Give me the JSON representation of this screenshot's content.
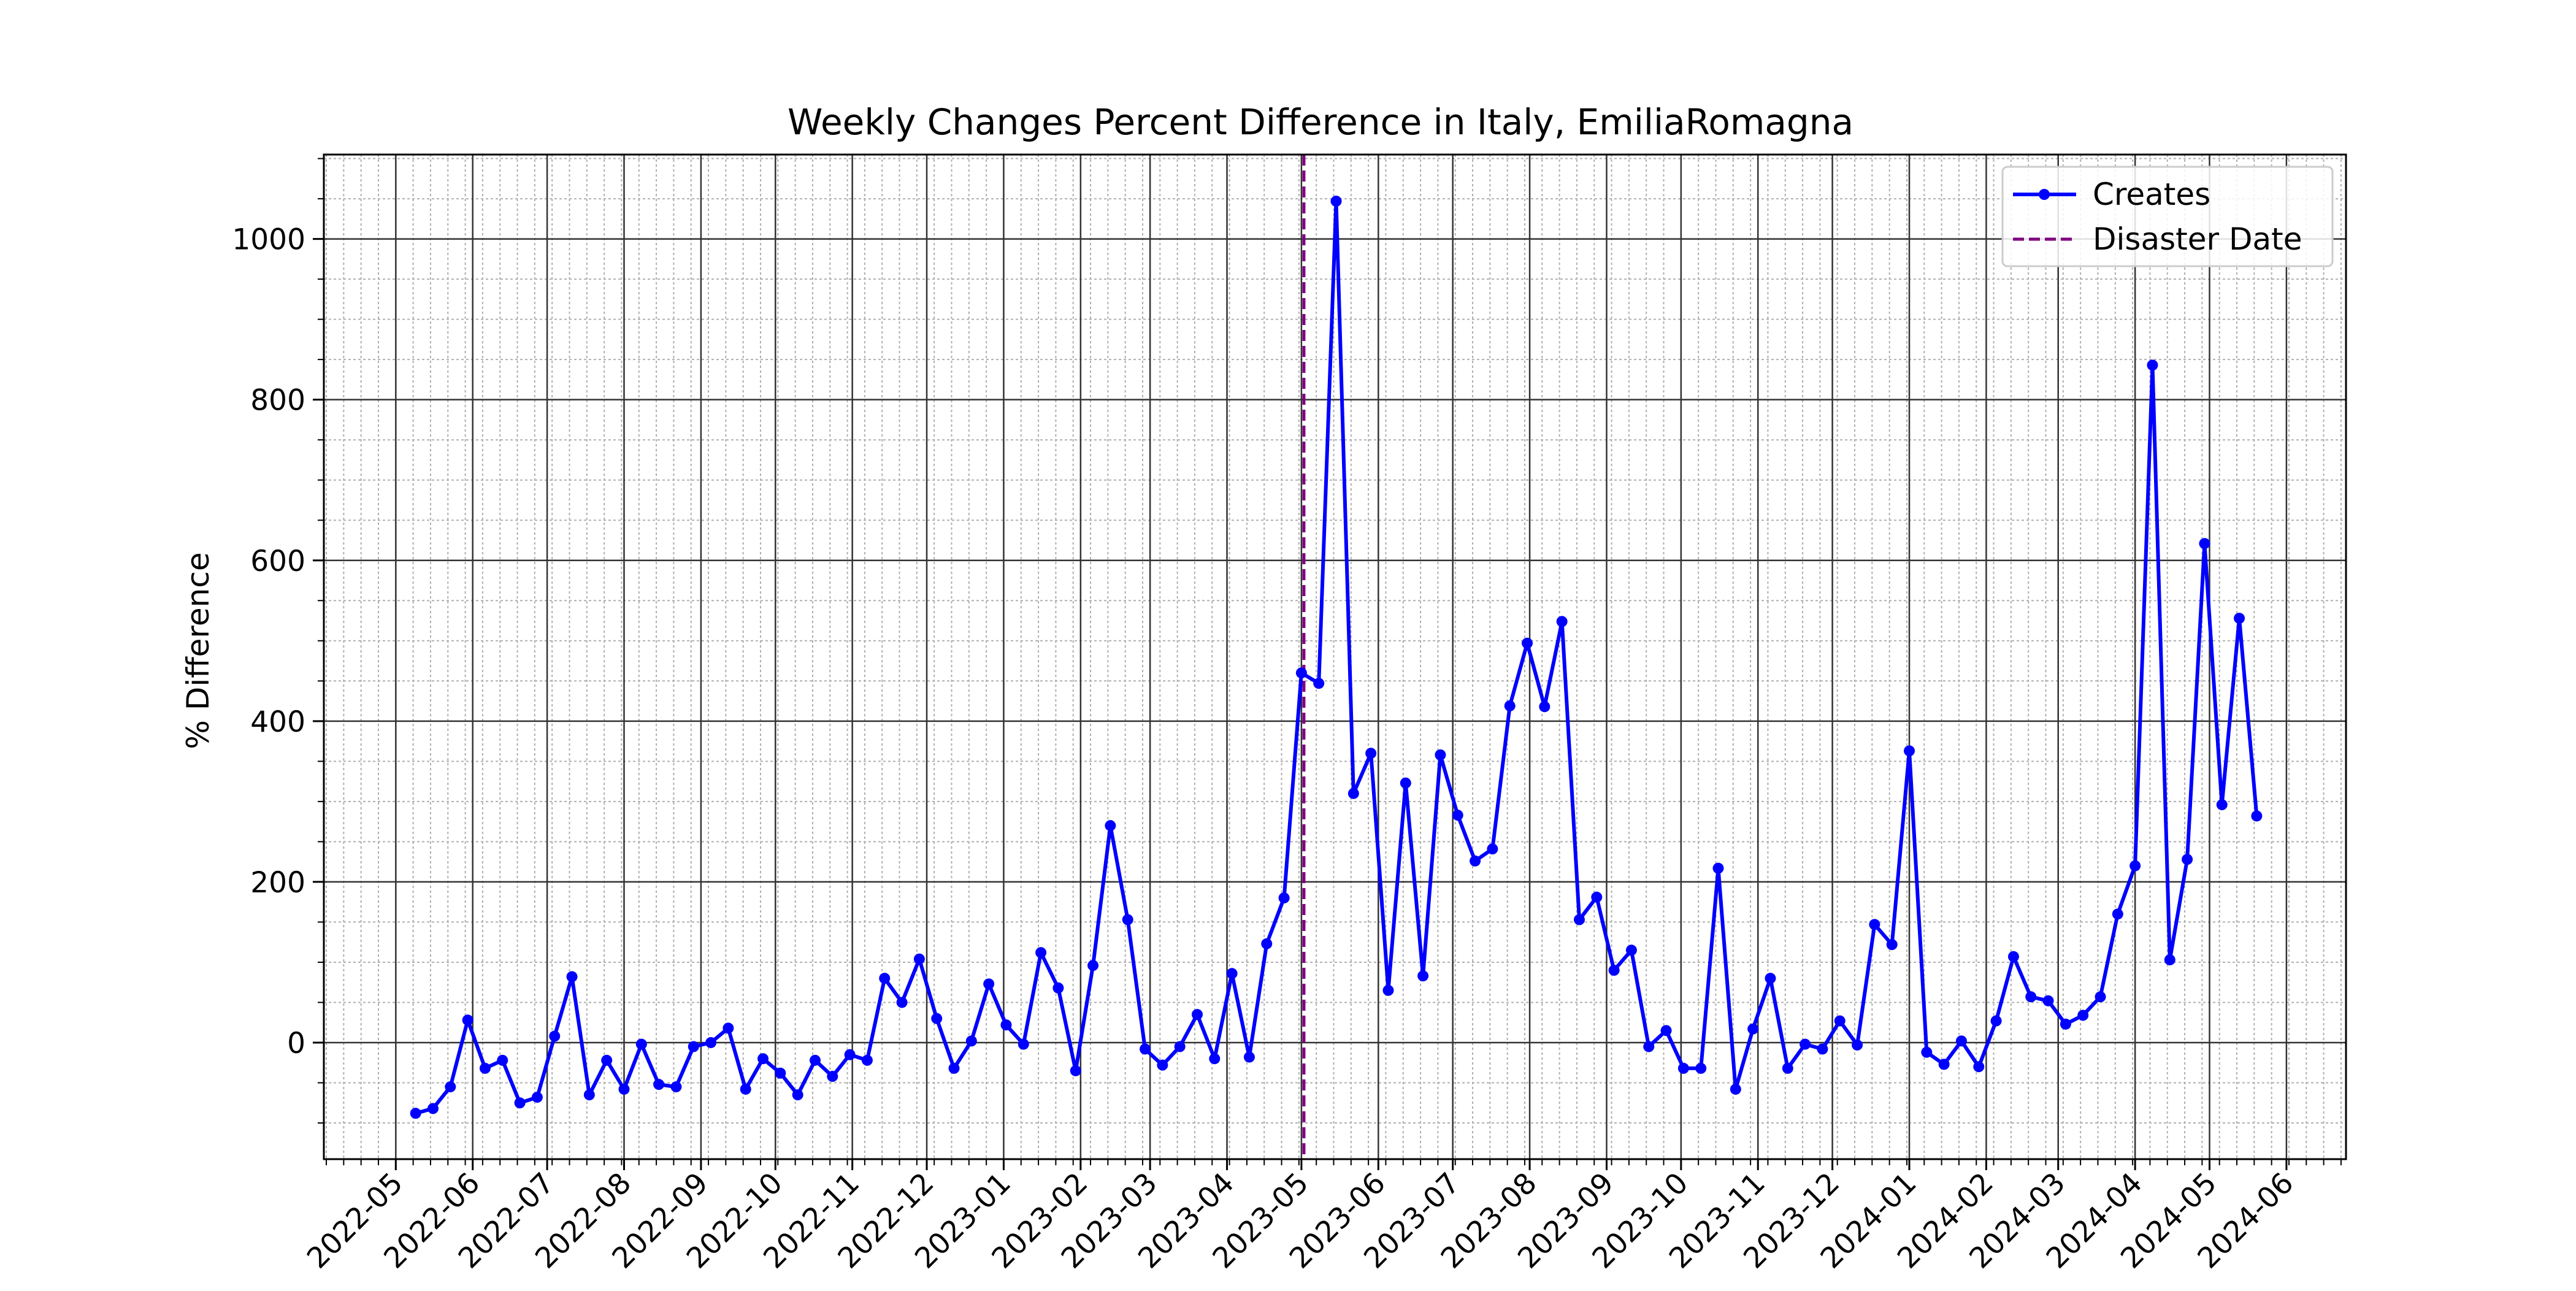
{
  "chart_data": {
    "type": "line",
    "title": "Weekly Changes Percent Difference in Italy, EmiliaRomagna",
    "xlabel": "",
    "ylabel": "% Difference",
    "xlim": [
      "2022-04-02",
      "2024-06-25"
    ],
    "ylim": [
      -145,
      1105
    ],
    "x_ticks": [
      "2022-05",
      "2022-06",
      "2022-07",
      "2022-08",
      "2022-09",
      "2022-10",
      "2022-11",
      "2022-12",
      "2023-01",
      "2023-02",
      "2023-03",
      "2023-04",
      "2023-05",
      "2023-06",
      "2023-07",
      "2023-08",
      "2023-09",
      "2023-10",
      "2023-11",
      "2023-12",
      "2024-01",
      "2024-02",
      "2024-03",
      "2024-04",
      "2024-05",
      "2024-06"
    ],
    "y_ticks": [
      0,
      200,
      400,
      600,
      800,
      1000
    ],
    "grid": "major and minor",
    "legend_position": "top-right",
    "series": [
      {
        "name": "Creates",
        "color": "#0000ff",
        "marker": "circle",
        "x": [
          "2022-05-09",
          "2022-05-16",
          "2022-05-23",
          "2022-05-30",
          "2022-06-06",
          "2022-06-13",
          "2022-06-20",
          "2022-06-27",
          "2022-07-04",
          "2022-07-11",
          "2022-07-18",
          "2022-07-25",
          "2022-08-01",
          "2022-08-08",
          "2022-08-15",
          "2022-08-22",
          "2022-08-29",
          "2022-09-05",
          "2022-09-12",
          "2022-09-19",
          "2022-09-26",
          "2022-10-03",
          "2022-10-10",
          "2022-10-17",
          "2022-10-24",
          "2022-10-31",
          "2022-11-07",
          "2022-11-14",
          "2022-11-21",
          "2022-11-28",
          "2022-12-05",
          "2022-12-12",
          "2022-12-19",
          "2022-12-26",
          "2023-01-02",
          "2023-01-09",
          "2023-01-16",
          "2023-01-23",
          "2023-01-30",
          "2023-02-06",
          "2023-02-13",
          "2023-02-20",
          "2023-02-27",
          "2023-03-06",
          "2023-03-13",
          "2023-03-20",
          "2023-03-27",
          "2023-04-03",
          "2023-04-10",
          "2023-04-17",
          "2023-04-24",
          "2023-05-01",
          "2023-05-08",
          "2023-05-15",
          "2023-05-22",
          "2023-05-29",
          "2023-06-05",
          "2023-06-12",
          "2023-06-19",
          "2023-06-26",
          "2023-07-03",
          "2023-07-10",
          "2023-07-17",
          "2023-07-24",
          "2023-07-31",
          "2023-08-07",
          "2023-08-14",
          "2023-08-21",
          "2023-08-28",
          "2023-09-04",
          "2023-09-11",
          "2023-09-18",
          "2023-09-25",
          "2023-10-02",
          "2023-10-09",
          "2023-10-16",
          "2023-10-23",
          "2023-10-30",
          "2023-11-06",
          "2023-11-13",
          "2023-11-20",
          "2023-11-27",
          "2023-12-04",
          "2023-12-11",
          "2023-12-18",
          "2023-12-25",
          "2024-01-01",
          "2024-01-08",
          "2024-01-15",
          "2024-01-22",
          "2024-01-29",
          "2024-02-05",
          "2024-02-12",
          "2024-02-19",
          "2024-02-26",
          "2024-03-04",
          "2024-03-11",
          "2024-03-18",
          "2024-03-25",
          "2024-04-01",
          "2024-04-08",
          "2024-04-15",
          "2024-04-22",
          "2024-04-29",
          "2024-05-06",
          "2024-05-13",
          "2024-05-20"
        ],
        "values": [
          -88,
          -82,
          -55,
          28,
          -32,
          -22,
          -75,
          -68,
          8,
          82,
          -65,
          -22,
          -58,
          -2,
          -52,
          -55,
          -5,
          0,
          18,
          -58,
          -20,
          -38,
          -65,
          -22,
          -42,
          -15,
          -22,
          80,
          50,
          104,
          30,
          -32,
          2,
          73,
          22,
          -2,
          112,
          68,
          -35,
          96,
          270,
          153,
          -8,
          -28,
          -5,
          35,
          -20,
          86,
          -18,
          123,
          180,
          460,
          447,
          1047,
          310,
          360,
          65,
          323,
          83,
          358,
          283,
          226,
          241,
          419,
          497,
          418,
          524,
          153,
          181,
          90,
          115,
          -5,
          15,
          -32,
          -32,
          217,
          -58,
          17,
          80,
          -32,
          -2,
          -8,
          27,
          -3,
          147,
          122,
          363,
          -12,
          -27,
          2,
          -30,
          27,
          107,
          57,
          52,
          23,
          34,
          57,
          160,
          220,
          843,
          103,
          228,
          621,
          296,
          528,
          282
        ]
      }
    ],
    "annotations": [
      {
        "type": "vline",
        "name": "Disaster Date",
        "x": "2023-05-02",
        "color": "#800080",
        "style": "dashed"
      }
    ]
  }
}
